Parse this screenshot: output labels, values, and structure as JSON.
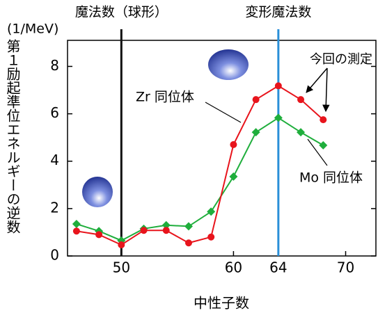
{
  "chart_data": {
    "type": "line",
    "y_unit": "(1/MeV)",
    "ylabel": "第１励起準位エネルギーの逆数",
    "xlabel": "中性子数",
    "xlim": [
      45.2,
      72.7
    ],
    "ylim": [
      0,
      9.1
    ],
    "xticks": [
      50,
      60,
      64,
      70
    ],
    "yticks": [
      0,
      2,
      4,
      6,
      8
    ],
    "vlines": [
      {
        "x": 50,
        "label": "魔法数（球形）",
        "color": "#111111"
      },
      {
        "x": 64,
        "label": "変形魔法数",
        "color": "#2a8fd8"
      }
    ],
    "annotation": "今回の測定",
    "series": [
      {
        "name": "Zr 同位体",
        "color": "#e8141c",
        "marker": "circle",
        "x": [
          46,
          48,
          50,
          52,
          54,
          56,
          58,
          60,
          62,
          64,
          66,
          68
        ],
        "values": [
          1.05,
          0.9,
          0.47,
          1.08,
          1.08,
          0.55,
          0.8,
          4.7,
          6.6,
          7.18,
          6.6,
          5.75
        ]
      },
      {
        "name": "Mo 同位体",
        "color": "#1fae3c",
        "marker": "diamond",
        "x": [
          46,
          48,
          50,
          52,
          54,
          56,
          58,
          60,
          62,
          64,
          66,
          68
        ],
        "values": [
          1.35,
          1.05,
          0.65,
          1.15,
          1.3,
          1.25,
          1.87,
          3.35,
          5.22,
          5.83,
          5.22,
          4.67
        ]
      }
    ]
  }
}
